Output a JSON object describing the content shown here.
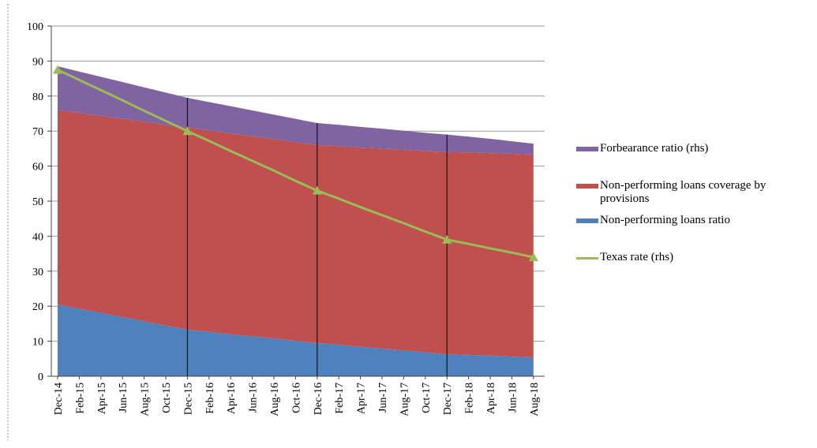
{
  "chart_data": {
    "type": "stacked-area-line",
    "categories": [
      "Dec-14",
      "Feb-15",
      "Apr-15",
      "Jun-15",
      "Aug-15",
      "Oct-15",
      "Dec-15",
      "Feb-16",
      "Apr-16",
      "Jun-16",
      "Aug-16",
      "Oct-16",
      "Dec-16",
      "Feb-17",
      "Apr-17",
      "Jun-17",
      "Aug-17",
      "Oct-17",
      "Dec-17",
      "Feb-18",
      "Apr-18",
      "Jun-18",
      "Aug-18"
    ],
    "series": [
      {
        "name": "Non-performing loans ratio",
        "color": "#4f81bd",
        "kind": "area",
        "values": [
          20.5,
          19.3,
          18.1,
          16.9,
          15.7,
          14.5,
          13.3,
          12.7,
          12.0,
          11.4,
          10.8,
          10.1,
          9.5,
          9.0,
          8.4,
          7.9,
          7.4,
          6.8,
          6.3,
          6.1,
          5.9,
          5.6,
          5.4
        ]
      },
      {
        "name": "Non-performing loans coverage by provisions",
        "color": "#c0504d",
        "kind": "area",
        "values": [
          55.5,
          55.9,
          56.2,
          56.6,
          57.0,
          57.3,
          57.7,
          57.5,
          57.3,
          57.1,
          56.9,
          56.7,
          56.5,
          56.7,
          56.9,
          57.1,
          57.3,
          57.5,
          57.7,
          57.8,
          57.8,
          57.9,
          57.9
        ]
      },
      {
        "name": "Forbearance ratio (rhs)",
        "color": "#8064a2",
        "kind": "area",
        "values": [
          12.5,
          11.8,
          11.2,
          10.5,
          9.8,
          9.2,
          8.5,
          8.1,
          7.8,
          7.4,
          7.0,
          6.7,
          6.3,
          6.1,
          5.9,
          5.7,
          5.4,
          5.2,
          5.0,
          4.5,
          4.1,
          3.6,
          3.1
        ]
      },
      {
        "name": "Texas rate (rhs)",
        "color": "#9bbb59",
        "kind": "line",
        "values": [
          87.5,
          84.6,
          81.7,
          78.8,
          75.8,
          72.9,
          70.0,
          67.2,
          64.3,
          61.5,
          58.7,
          55.8,
          53.0,
          50.7,
          48.3,
          46.0,
          43.7,
          41.3,
          39.0,
          37.8,
          36.5,
          35.3,
          34.0
        ]
      }
    ],
    "legend_order": [
      2,
      1,
      0,
      3
    ],
    "ylim": [
      0,
      100
    ],
    "yticks": [
      0,
      10,
      20,
      30,
      40,
      50,
      60,
      70,
      80,
      90,
      100
    ],
    "grid": true
  }
}
